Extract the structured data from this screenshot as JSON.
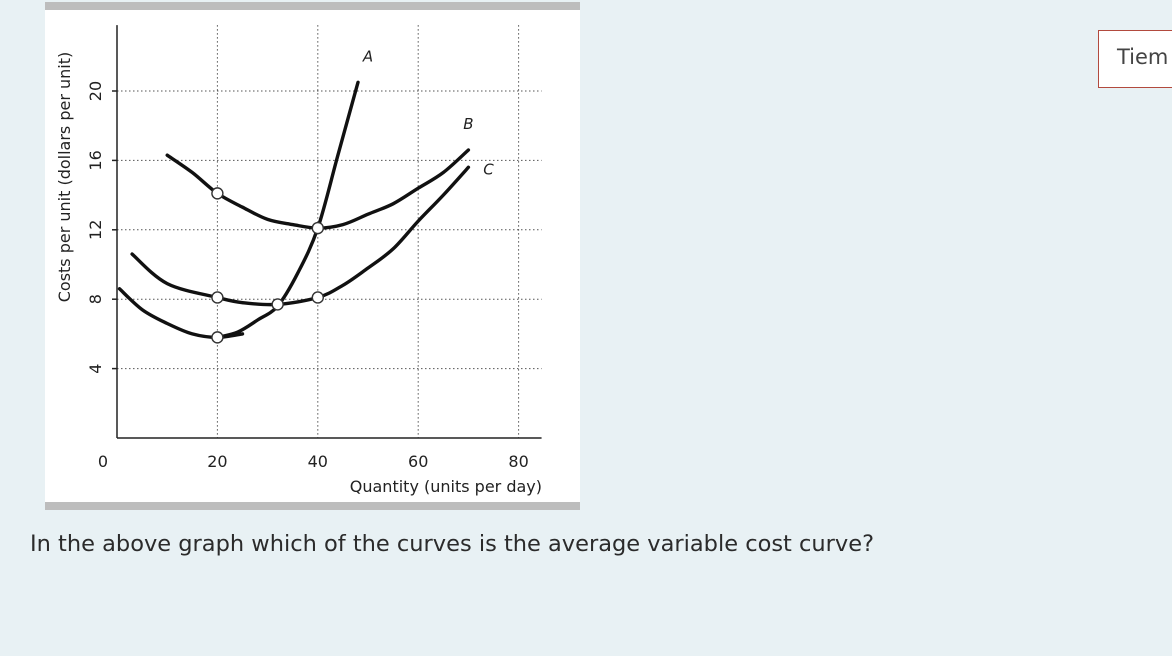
{
  "question": {
    "text": "In the above graph which of the curves is the average variable cost curve?"
  },
  "timer": {
    "label": "Tiem"
  },
  "chart_data": {
    "type": "line",
    "xlabel": "Quantity (units per day)",
    "ylabel": "Costs per unit (dollars per unit)",
    "xlim": [
      0,
      85
    ],
    "ylim": [
      0,
      24
    ],
    "x_ticks": [
      "0",
      "20",
      "40",
      "60",
      "80"
    ],
    "y_ticks": [
      "4",
      "8",
      "12",
      "16",
      "20"
    ],
    "x_tick_values": [
      0,
      20,
      40,
      60,
      80
    ],
    "y_tick_values": [
      4,
      8,
      12,
      16,
      20
    ],
    "grid": "dotted",
    "series": [
      {
        "name": "A",
        "x": [
          20,
          24,
          28,
          32,
          36,
          40,
          44,
          48
        ],
        "y": [
          5.8,
          6.1,
          6.8,
          7.6,
          9.5,
          12.1,
          16.3,
          20.5
        ]
      },
      {
        "name": "B",
        "x": [
          10,
          15,
          20,
          25,
          30,
          35,
          40,
          45,
          50,
          55,
          60,
          65,
          70
        ],
        "y": [
          16.3,
          15.3,
          14.1,
          13.3,
          12.6,
          12.3,
          12.1,
          12.3,
          12.9,
          13.5,
          14.4,
          15.3,
          16.6
        ]
      },
      {
        "name": "C",
        "x": [
          3,
          10,
          20,
          25,
          32,
          40,
          45,
          50,
          55,
          60,
          65,
          70
        ],
        "y": [
          10.6,
          8.9,
          8.1,
          7.8,
          7.7,
          8.1,
          8.8,
          9.8,
          10.9,
          12.5,
          14.0,
          15.6
        ]
      },
      {
        "name": "",
        "x": [
          0.5,
          5,
          10,
          15,
          20,
          25
        ],
        "y": [
          8.6,
          7.4,
          6.6,
          6.0,
          5.8,
          6.0
        ]
      }
    ],
    "markers": [
      {
        "x": 20,
        "y": 14.1
      },
      {
        "x": 40,
        "y": 12.1
      },
      {
        "x": 20,
        "y": 8.1
      },
      {
        "x": 32,
        "y": 7.7
      },
      {
        "x": 40,
        "y": 8.1
      },
      {
        "x": 20,
        "y": 5.8
      }
    ],
    "annotations": [
      {
        "text": "A",
        "x": 50,
        "y": 21.7
      },
      {
        "text": "B",
        "x": 70,
        "y": 17.8
      },
      {
        "text": "C",
        "x": 74,
        "y": 15.2
      }
    ]
  }
}
